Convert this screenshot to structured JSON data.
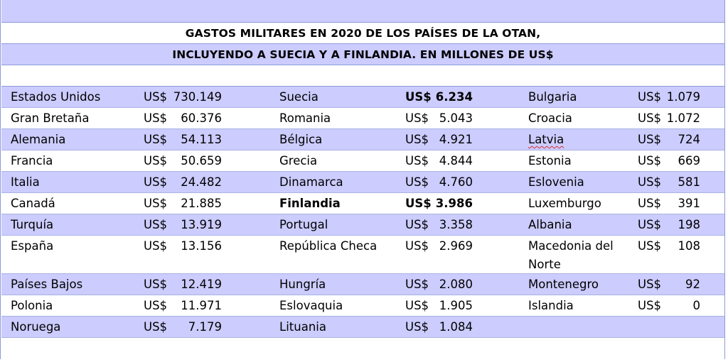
{
  "title": {
    "line1": "GASTOS MILITARES EN 2020 DE LOS PAÍSES DE LA OTAN,",
    "line2": "INCLUYENDO A SUECIA Y A FINLANDIA. EN MILLONES DE US$"
  },
  "currency": "US$",
  "columns": [
    [
      {
        "country": "Estados Unidos",
        "amount": "730.149"
      },
      {
        "country": "Gran Bretaña",
        "amount": "60.376"
      },
      {
        "country": "Alemania",
        "amount": "54.113"
      },
      {
        "country": "Francia",
        "amount": "50.659"
      },
      {
        "country": "Italia",
        "amount": "24.482"
      },
      {
        "country": "Canadá",
        "amount": "21.885"
      },
      {
        "country": "Turquía",
        "amount": "13.919"
      },
      {
        "country": "España",
        "amount": "13.156"
      },
      {
        "country": "Países Bajos",
        "amount": "12.419"
      },
      {
        "country": "Polonia",
        "amount": "11.971"
      },
      {
        "country": "Noruega",
        "amount": "7.179"
      }
    ],
    [
      {
        "country": "Suecia",
        "amount": "6.234",
        "bold_amount": true
      },
      {
        "country": "Romania",
        "amount": "5.043"
      },
      {
        "country": "Bélgica",
        "amount": "4.921"
      },
      {
        "country": "Grecia",
        "amount": "4.844"
      },
      {
        "country": "Dinamarca",
        "amount": "4.760"
      },
      {
        "country": "Finlandia",
        "amount": "3.986",
        "bold_country": true,
        "bold_amount": true
      },
      {
        "country": "Portugal",
        "amount": "3.358"
      },
      {
        "country": "República Checa",
        "amount": "2.969"
      },
      {
        "country": "Hungría",
        "amount": "2.080"
      },
      {
        "country": "Eslovaquia",
        "amount": "1.905"
      },
      {
        "country": "Lituania",
        "amount": "1.084"
      }
    ],
    [
      {
        "country": "Bulgaria",
        "amount": "1.079"
      },
      {
        "country": "Croacia",
        "amount": "1.072"
      },
      {
        "country": "Latvia",
        "amount": "724",
        "spellcheck": true
      },
      {
        "country": "Estonia",
        "amount": "669"
      },
      {
        "country": "Eslovenia",
        "amount": "581"
      },
      {
        "country": "Luxemburgo",
        "amount": "391"
      },
      {
        "country": "Albania",
        "amount": "198"
      },
      {
        "country": "Macedonia del Norte",
        "amount": "108"
      },
      {
        "country": "Montenegro",
        "amount": "92"
      },
      {
        "country": "Islandia",
        "amount": "0"
      }
    ]
  ],
  "colors": {
    "band": "#ccccff",
    "border": "#8e9bd6",
    "spellcheck": "#d03030"
  }
}
